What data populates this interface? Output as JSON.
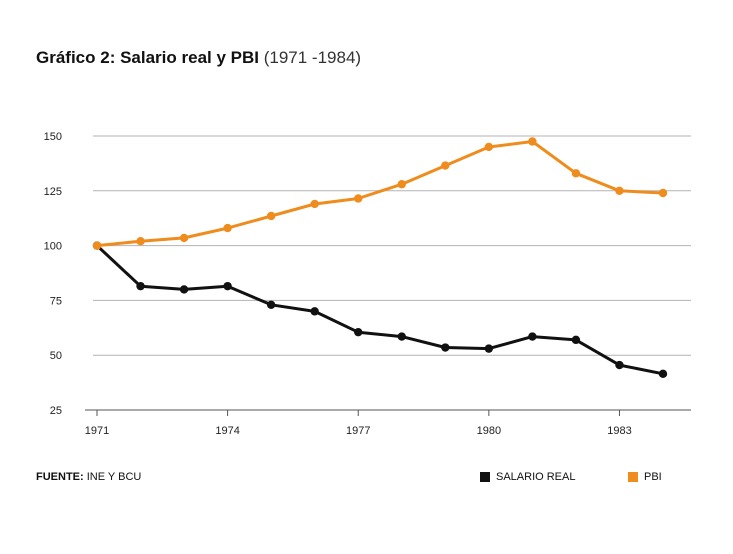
{
  "title": {
    "bold": "Gráfico 2: Salario real y PBI",
    "light": "(1971 -1984)"
  },
  "source": {
    "label": "FUENTE:",
    "text": "INE Y BCU"
  },
  "legend": [
    {
      "name": "SALARIO REAL",
      "color": "#111111"
    },
    {
      "name": "PBI",
      "color": "#ee8c1d"
    }
  ],
  "chart_data": {
    "type": "line",
    "x": [
      1971,
      1972,
      1973,
      1974,
      1975,
      1976,
      1977,
      1978,
      1979,
      1980,
      1981,
      1982,
      1983,
      1984
    ],
    "xticks": [
      1971,
      1974,
      1977,
      1980,
      1983
    ],
    "yticks": [
      25,
      50,
      75,
      100,
      125,
      150
    ],
    "xlim": [
      1971,
      1984
    ],
    "ylim": [
      25,
      150
    ],
    "grid": true,
    "legend_position": "bottom-right",
    "series": [
      {
        "name": "SALARIO REAL",
        "color": "#111111",
        "values": [
          100,
          81.5,
          80,
          81.5,
          73,
          70,
          60.5,
          58.5,
          53.5,
          53,
          58.5,
          57,
          45.5,
          41.5
        ]
      },
      {
        "name": "PBI",
        "color": "#ee8c1d",
        "values": [
          100,
          102,
          103.5,
          108,
          113.5,
          119,
          121.5,
          128,
          136.5,
          145,
          147.5,
          133,
          125,
          124
        ]
      }
    ]
  }
}
